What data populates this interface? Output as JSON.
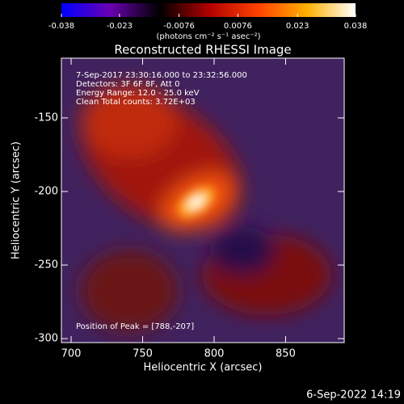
{
  "chart_data": {
    "type": "image",
    "title": "Reconstructed RHESSI Image",
    "x_label": "Heliocentric X (arcsec)",
    "y_label": "Heliocentric Y (arcsec)",
    "xlim": [
      693.2,
      891.0
    ],
    "xticks": [
      700,
      750,
      800,
      850
    ],
    "ylim": [
      -302.7,
      -109.4
    ],
    "yticks": [
      -150,
      -200,
      -250,
      -300
    ],
    "colorbar": {
      "lim": [
        -0.038,
        0.038
      ],
      "ticks": [
        -0.038,
        -0.023,
        -0.0076,
        0.0076,
        0.023,
        0.038
      ],
      "label": "(photons cm⁻² s⁻¹ asec⁻²)",
      "colormap": [
        "#0000ff",
        "#6a00b0",
        "#000000",
        "#b00000",
        "#ff4000",
        "#ffb000",
        "#ffffff"
      ]
    },
    "annotations": [
      "7-Sep-2017 23:30:16.000 to 23:32:56.000",
      "Detectors: 3F 6F 8F, Att 0",
      "Energy Range: 12.0 - 25.0 keV",
      "Clean     Total counts: 3.72E+03"
    ],
    "peak_label": "Position of Peak = [788,-207]",
    "footer": "6-Sep-2022 14:19"
  }
}
